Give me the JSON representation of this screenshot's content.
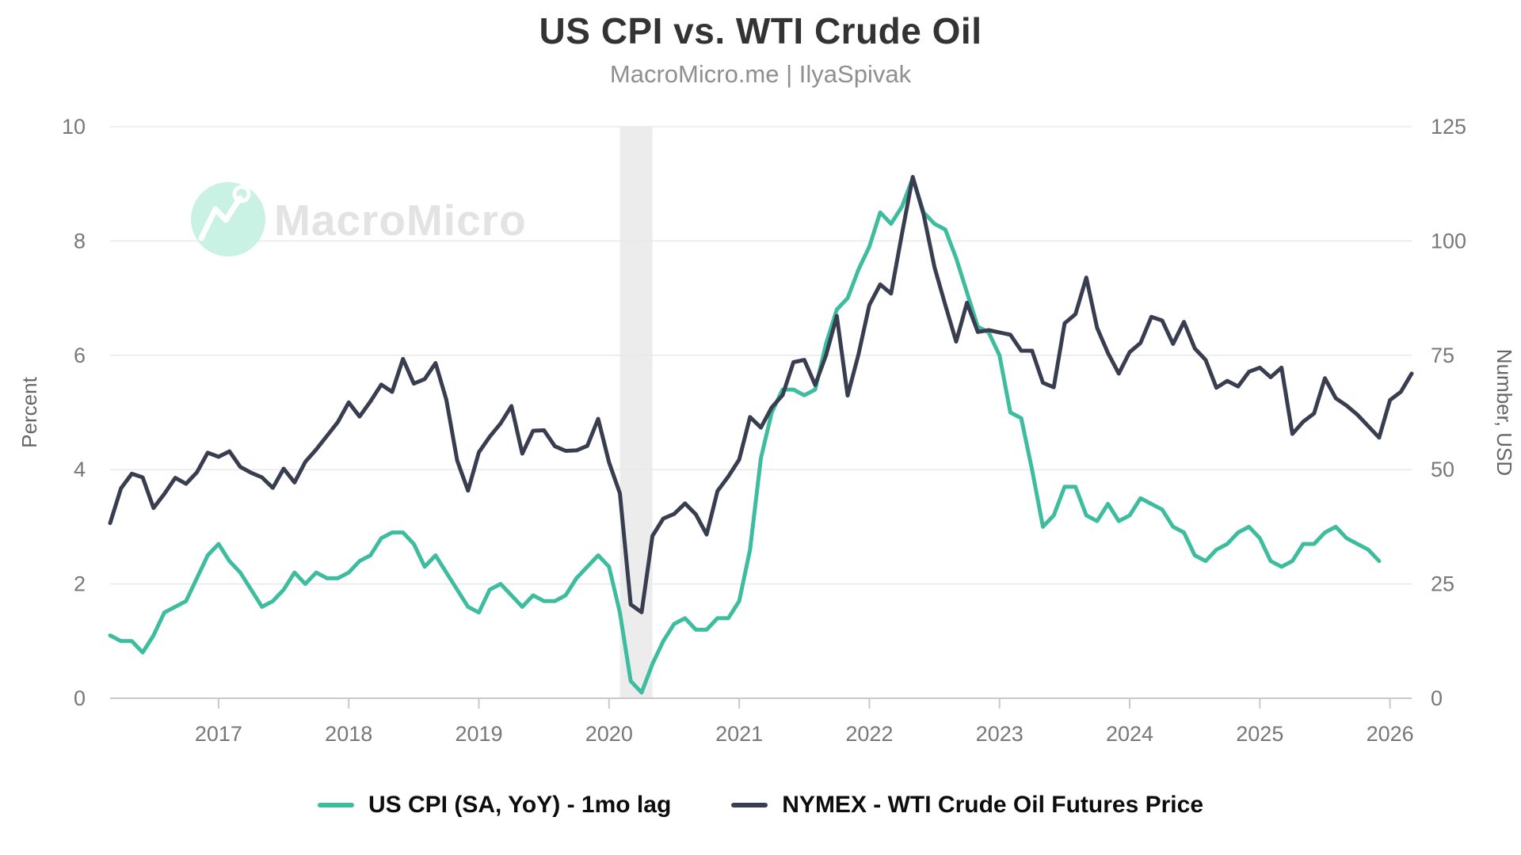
{
  "header": {
    "title": "US CPI vs. WTI Crude Oil",
    "subtitle": "MacroMicro.me | IlyaSpivak"
  },
  "watermark": {
    "text": "MacroMicro",
    "icon": "macromicro-logo-icon",
    "circle_color": "#c9f1e4",
    "logo_stroke_color": "#ffffff",
    "text_color": "#e3e3e3"
  },
  "colors": {
    "cpi_line": "#3dbd9e",
    "wti_line": "#383d50",
    "gridline": "#e8e8e8",
    "axis_line": "#c9c9c9",
    "tick_text": "#777777",
    "axis_title_text": "#666666",
    "recession_band": "#ececec"
  },
  "chart_data": {
    "type": "line",
    "title": "US CPI vs. WTI Crude Oil",
    "subtitle": "MacroMicro.me | IlyaSpivak",
    "x_start": "2016-03",
    "x_interval": "monthly",
    "x_tick_years": [
      2017,
      2018,
      2019,
      2020,
      2021,
      2022,
      2023,
      2024,
      2025,
      2026
    ],
    "left_axis": {
      "label": "Percent",
      "range": [
        0,
        10
      ],
      "ticks": [
        0,
        2,
        4,
        6,
        8,
        10
      ]
    },
    "right_axis": {
      "label": "Number, USD",
      "range": [
        0,
        125
      ],
      "ticks": [
        0,
        25,
        50,
        75,
        100,
        125
      ]
    },
    "grid": true,
    "legend_position": "bottom",
    "recession_band": {
      "from": "2020-02",
      "to": "2020-05"
    },
    "series": [
      {
        "name": "US CPI (SA, YoY) - 1mo lag",
        "axis": "left",
        "color": "#3dbd9e",
        "start": "2016-03",
        "end": "2025-12",
        "values": [
          1.1,
          1.0,
          1.0,
          0.8,
          1.1,
          1.5,
          1.6,
          1.7,
          2.1,
          2.5,
          2.7,
          2.4,
          2.2,
          1.9,
          1.6,
          1.7,
          1.9,
          2.2,
          2.0,
          2.2,
          2.1,
          2.1,
          2.2,
          2.4,
          2.5,
          2.8,
          2.9,
          2.9,
          2.7,
          2.3,
          2.5,
          2.2,
          1.9,
          1.6,
          1.5,
          1.9,
          2.0,
          1.8,
          1.6,
          1.8,
          1.7,
          1.7,
          1.8,
          2.1,
          2.3,
          2.5,
          2.3,
          1.5,
          0.3,
          0.1,
          0.6,
          1.0,
          1.3,
          1.4,
          1.2,
          1.2,
          1.4,
          1.4,
          1.7,
          2.6,
          4.2,
          5.0,
          5.4,
          5.4,
          5.3,
          5.4,
          6.2,
          6.8,
          7.0,
          7.5,
          7.9,
          8.5,
          8.3,
          8.6,
          9.1,
          8.5,
          8.3,
          8.2,
          7.7,
          7.1,
          6.5,
          6.4,
          6.0,
          5.0,
          4.9,
          4.0,
          3.0,
          3.2,
          3.7,
          3.7,
          3.2,
          3.1,
          3.4,
          3.1,
          3.2,
          3.5,
          3.4,
          3.3,
          3.0,
          2.9,
          2.5,
          2.4,
          2.6,
          2.7,
          2.9,
          3.0,
          2.8,
          2.4,
          2.3,
          2.4,
          2.7,
          2.7,
          2.9,
          3.0,
          2.8,
          2.7,
          2.6,
          2.4
        ]
      },
      {
        "name": "NYMEX - WTI Crude Oil Futures Price",
        "axis": "right",
        "color": "#383d50",
        "start": "2016-03",
        "end": "2026-03",
        "values": [
          38.3,
          45.9,
          49.1,
          48.3,
          41.6,
          44.7,
          48.2,
          46.9,
          49.4,
          53.7,
          52.8,
          54.0,
          50.6,
          49.3,
          48.3,
          46.0,
          50.2,
          47.2,
          51.7,
          54.4,
          57.4,
          60.4,
          64.7,
          61.6,
          64.9,
          68.6,
          67.0,
          74.2,
          68.8,
          69.8,
          73.3,
          65.3,
          52.0,
          45.4,
          53.8,
          57.2,
          60.1,
          63.9,
          53.5,
          58.5,
          58.6,
          55.1,
          54.1,
          54.2,
          55.2,
          61.1,
          51.6,
          44.8,
          20.5,
          18.8,
          35.5,
          39.3,
          40.3,
          42.6,
          40.2,
          35.8,
          45.3,
          48.5,
          52.2,
          61.5,
          59.2,
          63.6,
          66.3,
          73.5,
          74.0,
          68.5,
          75.0,
          83.6,
          66.2,
          75.2,
          86.0,
          90.5,
          88.5,
          101.5,
          114.0,
          105.8,
          94.3,
          86.0,
          78.0,
          86.5,
          80.1,
          80.5,
          80.0,
          79.5,
          76.0,
          76.0,
          69.0,
          68.0,
          82.0,
          84.0,
          92.0,
          81.0,
          75.5,
          71.0,
          75.7,
          77.7,
          83.4,
          82.6,
          77.5,
          82.3,
          76.5,
          74.0,
          67.9,
          69.4,
          68.2,
          71.4,
          72.3,
          70.2,
          72.3,
          57.8,
          60.5,
          62.3,
          70.0,
          65.6,
          64.0,
          62.0,
          59.5,
          57.0,
          65.2,
          67.0,
          71.0
        ]
      }
    ]
  },
  "legend": {
    "items": [
      {
        "label": "US CPI (SA, YoY) - 1mo lag",
        "color": "#3dbd9e",
        "id": "legend-item-cpi"
      },
      {
        "label": "NYMEX - WTI Crude Oil Futures Price",
        "color": "#383d50",
        "id": "legend-item-wti"
      }
    ]
  }
}
